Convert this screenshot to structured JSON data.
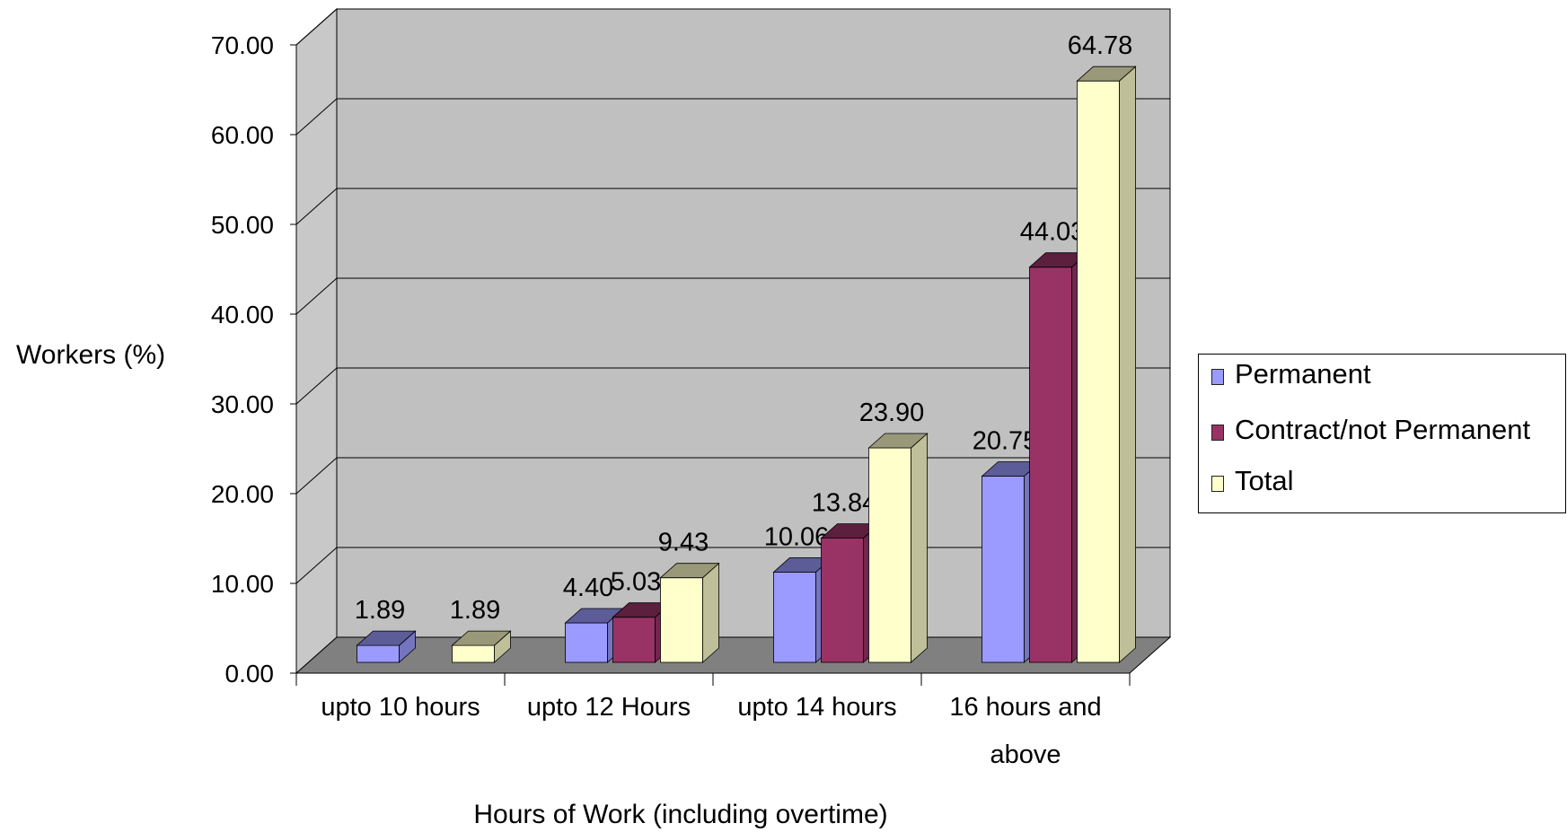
{
  "chart_data": {
    "type": "bar",
    "xlabel": "Hours of Work (including overtime)",
    "ylabel": "Workers (%)",
    "ylim": [
      0,
      70
    ],
    "yticks": [
      "0.00",
      "10.00",
      "20.00",
      "30.00",
      "40.00",
      "50.00",
      "60.00",
      "70.00"
    ],
    "categories": [
      [
        "upto 10 hours"
      ],
      [
        "upto 12 Hours"
      ],
      [
        "upto 14 hours"
      ],
      [
        "16 hours and",
        "above"
      ]
    ],
    "series": [
      {
        "name": "Permanent",
        "color": "#9a9aff",
        "values": [
          1.89,
          4.4,
          10.06,
          20.75
        ],
        "labels": [
          "1.89",
          "4.40",
          "10.06",
          "20.75"
        ]
      },
      {
        "name": "Contract/not Permanent",
        "color": "#993366",
        "values": [
          null,
          5.03,
          13.84,
          44.03
        ],
        "labels": [
          "",
          "5.03",
          "13.84",
          "44.03"
        ]
      },
      {
        "name": "Total",
        "color": "#ffffcc",
        "values": [
          1.89,
          9.43,
          23.9,
          64.78
        ],
        "labels": [
          "1.89",
          "9.43",
          "23.90",
          "64.78"
        ]
      }
    ],
    "grid": true,
    "legend": "right",
    "style": "3d-bars",
    "wall_color": "#c0c0c0",
    "floor_color": "#808080"
  }
}
